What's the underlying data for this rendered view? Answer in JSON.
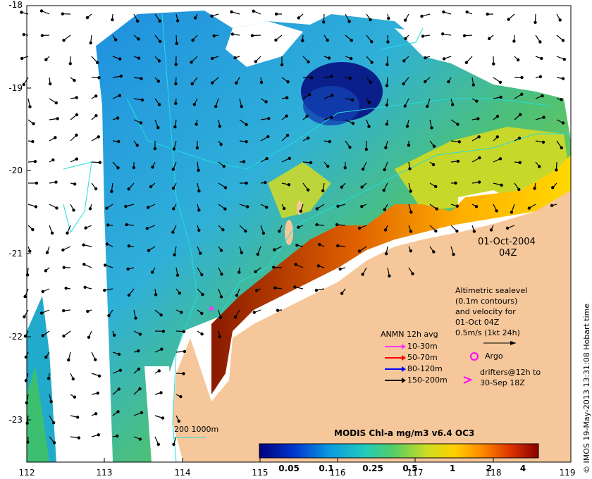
{
  "map": {
    "date": "01-Oct-2004",
    "time": "04Z",
    "lat_ticks": [
      "-18",
      "-19",
      "-20",
      "-21",
      "-22",
      "-23"
    ],
    "lon_ticks": [
      "112",
      "113",
      "114",
      "115",
      "116",
      "117",
      "118",
      "119"
    ],
    "colors": {
      "land": "#f5c79a",
      "cloud": "#ffffff",
      "contour": "#22dddd",
      "coast_shelf": "#c8e7ea"
    }
  },
  "altimetry": {
    "line1": "Altimetric sealevel",
    "line2": "(0.1m contours)",
    "line3": "and velocity for",
    "line4": "01-Oct 04Z",
    "scale": "0.5m/s (1kt 24h)"
  },
  "anmn": {
    "title": "ANMN 12h avg",
    "items": [
      {
        "label": "10-30m",
        "color": "#ff33ff"
      },
      {
        "label": "50-70m",
        "color": "#ff0000"
      },
      {
        "label": "80-120m",
        "color": "#0000ff"
      },
      {
        "label": "150-200m",
        "color": "#000000"
      }
    ]
  },
  "argo": {
    "label": "Argo",
    "color": "#ff00ff"
  },
  "drifters": {
    "line1": "drifters@12h to",
    "line2": "30-Sep 18Z",
    "color": "#ff00ff"
  },
  "isobath": {
    "label": "200  1000m"
  },
  "colorbar": {
    "title": "MODIS Chl-a mg/m3 v6.4 OC3",
    "ticks": [
      "0.05",
      "0.1",
      "0.25",
      "0.5",
      "1",
      "2",
      "4"
    ]
  },
  "credit": "© IMOS 19-May-2013 13:31:08 Hobart time"
}
